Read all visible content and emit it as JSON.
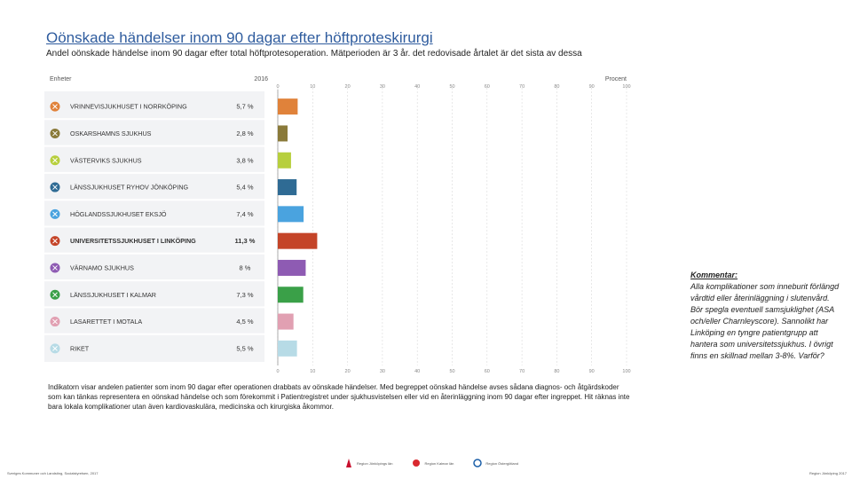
{
  "title": "Oönskade händelser inom 90 dagar efter höftproteskirurgi",
  "subtitle": "Andel oönskade händelse inom 90 dagar efter total höftprotesoperation. Mätperioden är 3 år. det redovisade årtalet är det sista av dessa",
  "chart_data": {
    "type": "bar",
    "orientation": "horizontal",
    "column_header_units": "Enheter",
    "column_header_year": "2016",
    "xlabel": "Procent",
    "xlim": [
      0,
      100
    ],
    "xticks": [
      "0",
      "10",
      "20",
      "30",
      "40",
      "50",
      "60",
      "70",
      "80",
      "90",
      "100"
    ],
    "categories": [
      "VRINNEVISJUKHUSET I NORRKÖPING",
      "OSKARSHAMNS SJUKHUS",
      "VÄSTERVIKS SJUKHUS",
      "LÄNSSJUKHUSET RYHOV JÖNKÖPING",
      "HÖGLANDSSJUKHUSET EKSJÖ",
      "UNIVERSITETSSJUKHUSET I LINKÖPING",
      "VÄRNAMO SJUKHUS",
      "LÄNSSJUKHUSET I KALMAR",
      "LASARETTET I MOTALA",
      "RIKET"
    ],
    "values": [
      5.7,
      2.8,
      3.8,
      5.4,
      7.4,
      11.3,
      8,
      7.3,
      4.5,
      5.5
    ],
    "value_labels": [
      "5,7 %",
      "2,8 %",
      "3,8 %",
      "5,4 %",
      "7,4 %",
      "11,3 %",
      "8 %",
      "7,3 %",
      "4,5 %",
      "5,5 %"
    ],
    "colors": [
      "#e0823a",
      "#8a7a3a",
      "#b7cf3d",
      "#2f6b94",
      "#4aa3df",
      "#c44428",
      "#8e5bb3",
      "#3aa048",
      "#e1a0b2",
      "#b7dbe6"
    ],
    "bold_categories": [
      5
    ]
  },
  "note": "Indikatorn visar andelen patienter som inom 90 dagar efter operationen drabbats av oönskade händelser.   Med begreppet oönskad händelse avses sådana diagnos- och åtgärdskoder som kan tänkas representera en oönskad händelse och som förekommit i Patientregistret under sjukhusvistelsen eller vid en återinläggning inom 90 dagar efter ingreppet. Hit räknas inte bara lokala komplikationer utan även kardiovaskulära, medicinska och kirurgiska åkommor.",
  "comment": {
    "heading": "Kommentar:",
    "text": "Alla komplikationer som inneburit förlängd vårdtid eller återinläggning i slutenvård. Bör spegla eventuell samsjuklighet (ASA och/eller Charnleyscore). Sannolikt har Linköping en tyngre patientgrupp att hantera som universitetssjukhus. I övrigt finns en skillnad mellan 3-8%. Varför?"
  },
  "footer": {
    "source": "Sveriges Kommuner och Landsting, Socialstyrelsen, 2017",
    "page": "Region Jönköping 2017",
    "logos": [
      "Region Jönköpings län",
      "Region Kalmar län",
      "Region Östergötland"
    ]
  }
}
